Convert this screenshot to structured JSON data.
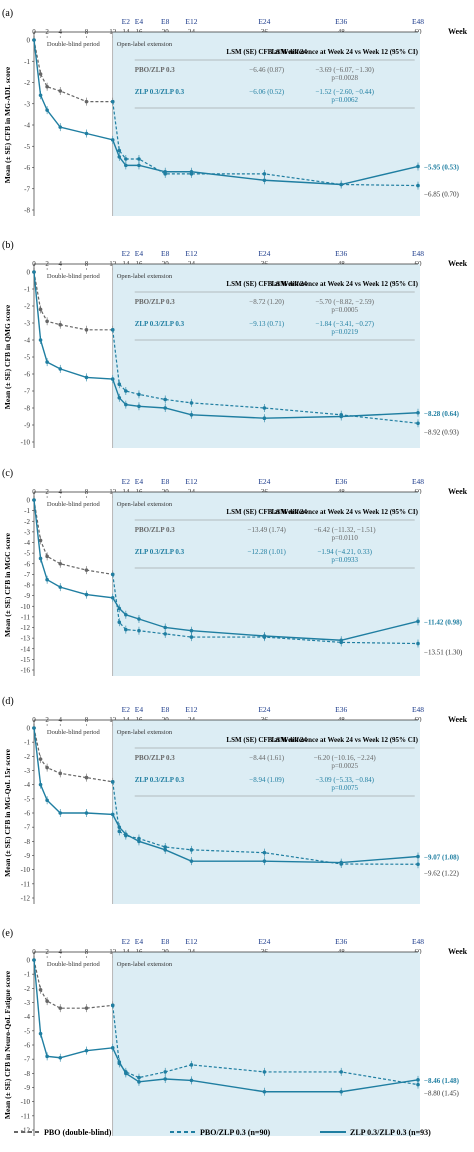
{
  "page": {
    "week_label": "Week",
    "double_blind_label": "Double-blind period",
    "ole_label": "Open-label extension",
    "table_headers": [
      "LSM (SE) CFB at Week 24",
      "LSM difference at Week 24 vs Week 12 (95% CI)"
    ],
    "top_ticks": [
      "0",
      "2",
      "4",
      "8",
      "12",
      "14",
      "16",
      "20",
      "24",
      "36",
      "48",
      "60"
    ],
    "extension_ticks": [
      "E2",
      "E4",
      "E8",
      "E12",
      "E24",
      "E36",
      "E48"
    ]
  },
  "legend": {
    "items": [
      {
        "label": "PBO (double-blind)",
        "style": "dashed",
        "color": "#666666"
      },
      {
        "label": "PBO/ZLP 0.3 (n=90)",
        "style": "dashed",
        "color": "#1f7ea1"
      },
      {
        "label": "ZLP 0.3/ZLP 0.3 (n=93)",
        "style": "solid",
        "color": "#1f7ea1"
      }
    ]
  },
  "colors": {
    "pbo": "#666666",
    "active": "#1f7ea1",
    "ole_fill": "#dcedf4",
    "grid": "#8a8a8a"
  },
  "chart_data": [
    {
      "panel": "(a)",
      "type": "line",
      "title": "",
      "ylabel": "Mean (± SE) CFB in MG-ADL score",
      "ylim": [
        -8,
        0
      ],
      "yticks": [
        0,
        -1,
        -2,
        -3,
        -4,
        -5,
        -6,
        -7,
        -8
      ],
      "x_label": "Week",
      "rows": [
        {
          "name": "PBO/ZLP 0.3",
          "lsm": "−6.46 (0.87)",
          "diff": "−3.69 (−6.07, −1.30)",
          "p": "p=0.0028"
        },
        {
          "name": "ZLP 0.3/ZLP 0.3",
          "lsm": "−6.06 (0.52)",
          "diff": "−1.52 (−2.60, −0.44)",
          "p": "p=0.0062"
        }
      ],
      "end_labels": {
        "zlp": "−5.95 (0.53)",
        "pbo": "−6.85 (0.70)"
      },
      "series": [
        {
          "name": "PBO (double-blind)",
          "x": [
            0,
            1,
            2,
            4,
            8,
            12
          ],
          "y": [
            0,
            -1.6,
            -2.2,
            -2.4,
            -2.9,
            -2.9
          ]
        },
        {
          "name": "PBO/ZLP 0.3",
          "x": [
            12,
            13,
            14,
            16,
            20,
            24,
            36,
            48,
            60
          ],
          "y": [
            -2.9,
            -5.2,
            -5.6,
            -5.6,
            -6.3,
            -6.3,
            -6.3,
            -6.8,
            -6.85
          ]
        },
        {
          "name": "ZLP 0.3/ZLP 0.3",
          "x": [
            0,
            1,
            2,
            4,
            8,
            12,
            13,
            14,
            16,
            20,
            24,
            36,
            48,
            60
          ],
          "y": [
            0,
            -2.6,
            -3.3,
            -4.1,
            -4.4,
            -4.7,
            -5.5,
            -5.9,
            -5.9,
            -6.2,
            -6.2,
            -6.6,
            -6.8,
            -5.95
          ]
        }
      ]
    },
    {
      "panel": "(b)",
      "type": "line",
      "title": "",
      "ylabel": "Mean (± SE) CFB in QMG score",
      "ylim": [
        -10,
        0
      ],
      "yticks": [
        0,
        -1,
        -2,
        -3,
        -4,
        -5,
        -6,
        -7,
        -8,
        -9,
        -10
      ],
      "x_label": "Week",
      "rows": [
        {
          "name": "PBO/ZLP 0.3",
          "lsm": "−8.72 (1.20)",
          "diff": "−5.70 (−8.82, −2.59)",
          "p": "p=0.0005"
        },
        {
          "name": "ZLP 0.3/ZLP 0.3",
          "lsm": "−9.13 (0.71)",
          "diff": "−1.84 (−3.41, −0.27)",
          "p": "p=0.0219"
        }
      ],
      "end_labels": {
        "zlp": "−8.28 (0.64)",
        "pbo": "−8.92 (0.93)"
      },
      "series": [
        {
          "name": "PBO (double-blind)",
          "x": [
            0,
            1,
            2,
            4,
            8,
            12
          ],
          "y": [
            0,
            -2.2,
            -2.9,
            -3.1,
            -3.4,
            -3.4
          ]
        },
        {
          "name": "PBO/ZLP 0.3",
          "x": [
            12,
            13,
            14,
            16,
            20,
            24,
            36,
            48,
            60
          ],
          "y": [
            -3.4,
            -6.6,
            -7.0,
            -7.2,
            -7.5,
            -7.7,
            -8.0,
            -8.4,
            -8.9
          ]
        },
        {
          "name": "ZLP 0.3/ZLP 0.3",
          "x": [
            0,
            1,
            2,
            4,
            8,
            12,
            13,
            14,
            16,
            20,
            24,
            36,
            48,
            60
          ],
          "y": [
            0,
            -4.0,
            -5.3,
            -5.7,
            -6.2,
            -6.3,
            -7.4,
            -7.8,
            -7.9,
            -8.0,
            -8.4,
            -8.6,
            -8.5,
            -8.28
          ]
        }
      ]
    },
    {
      "panel": "(c)",
      "type": "line",
      "title": "",
      "ylabel": "Mean (± SE) CFB in MGC score",
      "ylim": [
        -16,
        0
      ],
      "yticks": [
        0,
        -1,
        -2,
        -3,
        -4,
        -5,
        -6,
        -7,
        -8,
        -9,
        -10,
        -11,
        -12,
        -13,
        -14,
        -15,
        -16
      ],
      "x_label": "Week",
      "rows": [
        {
          "name": "PBO/ZLP 0.3",
          "lsm": "−13.49 (1.74)",
          "diff": "−6.42 (−11.32, −1.51)",
          "p": "p=0.0110"
        },
        {
          "name": "ZLP 0.3/ZLP 0.3",
          "lsm": "−12.28 (1.01)",
          "diff": "−1.94 (−4.21, 0.33)",
          "p": "p=0.0933"
        }
      ],
      "end_labels": {
        "zlp": "−11.42 (0.98)",
        "pbo": "−13.51 (1.30)"
      },
      "series": [
        {
          "name": "PBO (double-blind)",
          "x": [
            0,
            1,
            2,
            4,
            8,
            12
          ],
          "y": [
            0,
            -3.8,
            -5.3,
            -6.0,
            -6.6,
            -7.0
          ]
        },
        {
          "name": "PBO/ZLP 0.3",
          "x": [
            12,
            13,
            14,
            16,
            20,
            24,
            36,
            48,
            60
          ],
          "y": [
            -7.0,
            -11.5,
            -12.2,
            -12.3,
            -12.6,
            -12.9,
            -12.9,
            -13.4,
            -13.51
          ]
        },
        {
          "name": "ZLP 0.3/ZLP 0.3",
          "x": [
            0,
            1,
            2,
            4,
            8,
            12,
            13,
            14,
            16,
            20,
            24,
            36,
            48,
            60
          ],
          "y": [
            0,
            -5.5,
            -7.5,
            -8.2,
            -8.9,
            -9.2,
            -10.2,
            -10.8,
            -11.2,
            -12.0,
            -12.3,
            -12.8,
            -13.2,
            -11.42
          ]
        }
      ]
    },
    {
      "panel": "(d)",
      "type": "line",
      "title": "",
      "ylabel": "Mean (± SE) CFB in MG-QoL 15r score",
      "ylim": [
        -12,
        0
      ],
      "yticks": [
        0,
        -1,
        -2,
        -3,
        -4,
        -5,
        -6,
        -7,
        -8,
        -9,
        -10,
        -11,
        -12
      ],
      "x_label": "Week",
      "rows": [
        {
          "name": "PBO/ZLP 0.3",
          "lsm": "−8.44 (1.61)",
          "diff": "−6.20 (−10.16, −2.24)",
          "p": "p=0.0025"
        },
        {
          "name": "ZLP 0.3/ZLP 0.3",
          "lsm": "−8.94 (1.09)",
          "diff": "−3.09 (−5.33, −0.84)",
          "p": "p=0.0075"
        }
      ],
      "end_labels": {
        "zlp": "−9.07 (1.08)",
        "pbo": "−9.62 (1.22)"
      },
      "series": [
        {
          "name": "PBO (double-blind)",
          "x": [
            0,
            1,
            2,
            4,
            8,
            12
          ],
          "y": [
            0,
            -2.2,
            -2.8,
            -3.2,
            -3.5,
            -3.8
          ]
        },
        {
          "name": "PBO/ZLP 0.3",
          "x": [
            12,
            13,
            14,
            16,
            20,
            24,
            36,
            48,
            60
          ],
          "y": [
            -3.8,
            -7.3,
            -7.6,
            -7.8,
            -8.4,
            -8.6,
            -8.8,
            -9.6,
            -9.62
          ]
        },
        {
          "name": "ZLP 0.3/ZLP 0.3",
          "x": [
            0,
            1,
            2,
            4,
            8,
            12,
            13,
            14,
            16,
            20,
            24,
            36,
            48,
            60
          ],
          "y": [
            0,
            -4.0,
            -5.1,
            -6.0,
            -6.0,
            -6.1,
            -7.0,
            -7.5,
            -8.0,
            -8.6,
            -9.4,
            -9.4,
            -9.5,
            -9.07
          ]
        }
      ]
    },
    {
      "panel": "(e)",
      "type": "line",
      "title": "",
      "ylabel": "Mean (± SE) CFB in Neuro-QoL Fatigue score",
      "ylim": [
        -12,
        0
      ],
      "yticks": [
        0,
        -1,
        -2,
        -3,
        -4,
        -5,
        -6,
        -7,
        -8,
        -9,
        -10,
        -11,
        -12
      ],
      "x_label": "Week",
      "rows": [],
      "end_labels": {
        "zlp": "−8.46 (1.48)",
        "pbo": "−8.80 (1.45)"
      },
      "series": [
        {
          "name": "PBO (double-blind)",
          "x": [
            0,
            1,
            2,
            4,
            8,
            12
          ],
          "y": [
            0,
            -2.1,
            -2.9,
            -3.4,
            -3.4,
            -3.2
          ]
        },
        {
          "name": "PBO/ZLP 0.3",
          "x": [
            12,
            13,
            14,
            16,
            20,
            24,
            36,
            48,
            60
          ],
          "y": [
            -3.2,
            -7.3,
            -7.9,
            -8.3,
            -7.9,
            -7.4,
            -7.9,
            -7.9,
            -8.8
          ]
        },
        {
          "name": "ZLP 0.3/ZLP 0.3",
          "x": [
            0,
            1,
            2,
            4,
            8,
            12,
            13,
            14,
            16,
            20,
            24,
            36,
            48,
            60
          ],
          "y": [
            0,
            -5.2,
            -6.8,
            -6.9,
            -6.4,
            -6.2,
            -7.2,
            -8.0,
            -8.6,
            -8.4,
            -8.5,
            -9.3,
            -9.3,
            -8.46
          ]
        }
      ]
    }
  ]
}
